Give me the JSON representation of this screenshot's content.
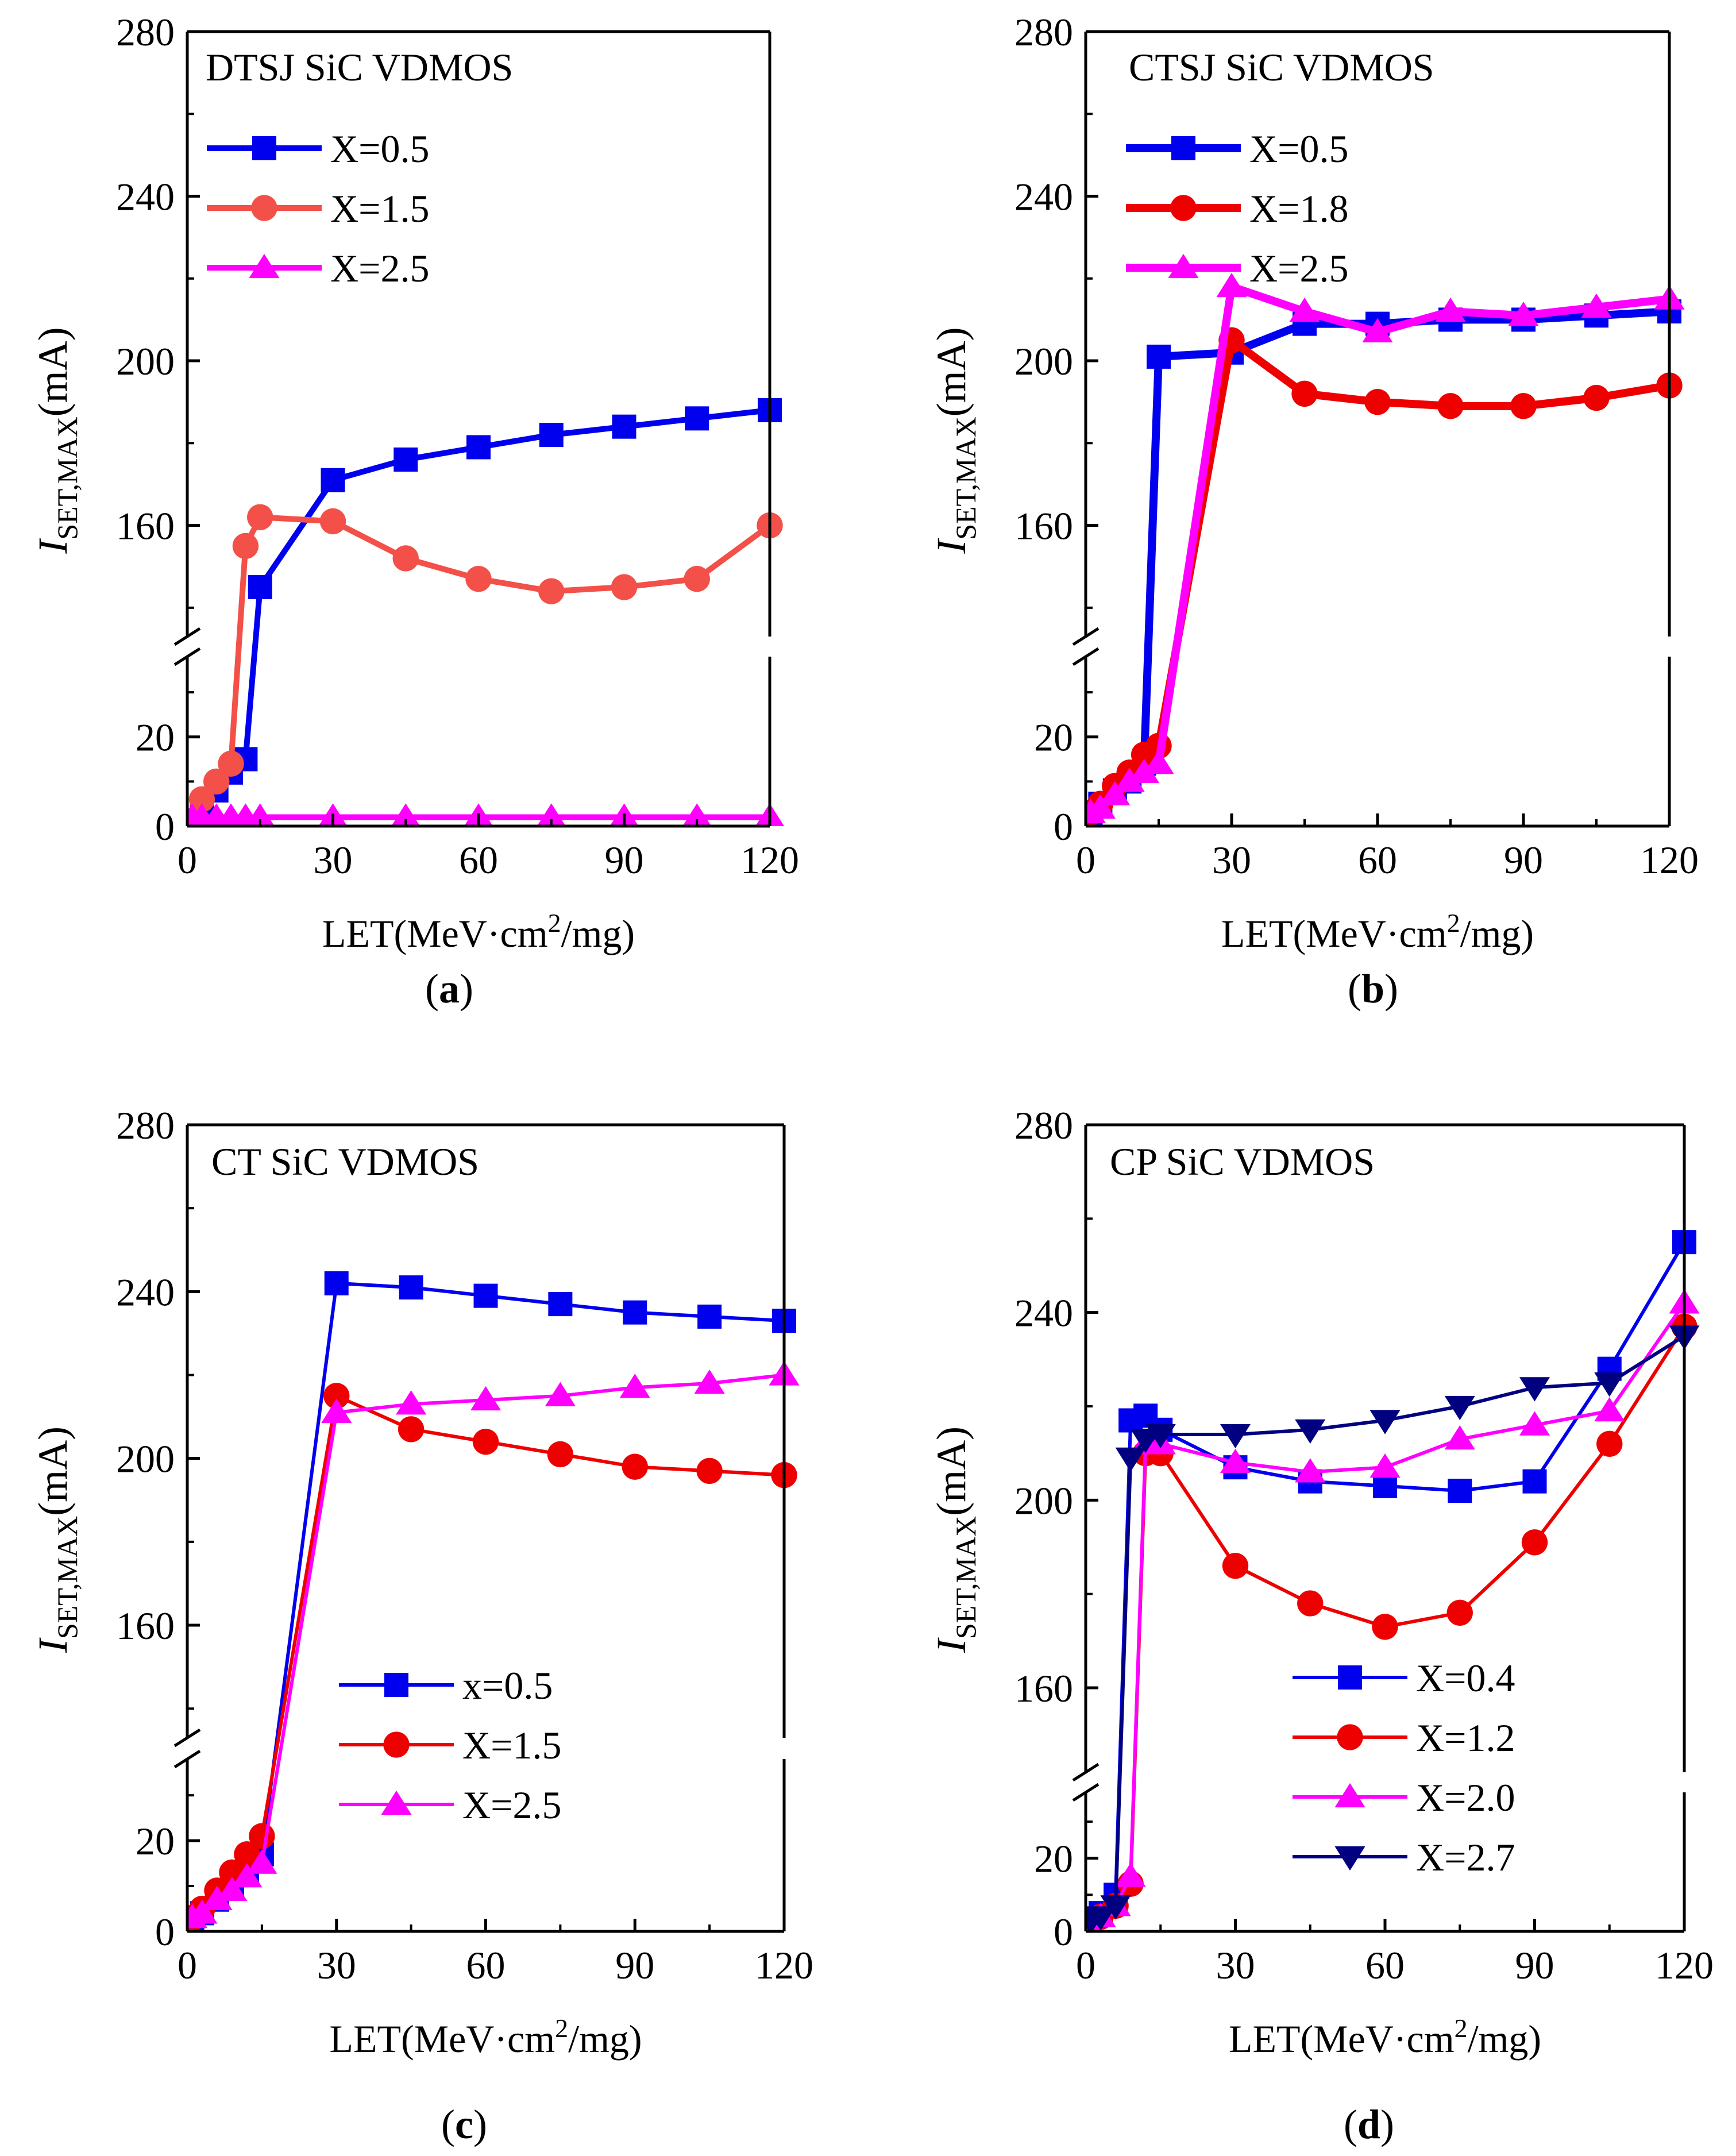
{
  "chart_data": [
    {
      "type": "line",
      "panel": "a",
      "caption": "a",
      "title": "DTSJ SiC VDMOS",
      "xlabel": "LET(MeV·cm²/mg)",
      "ylabel": "I_SET,MAX(mA)",
      "xlim": [
        0,
        120
      ],
      "xticks": [
        0,
        30,
        60,
        90,
        120
      ],
      "lower_ylim": [
        0,
        38
      ],
      "lower_yticks": [
        0,
        20
      ],
      "upper_ylim": [
        133,
        280
      ],
      "upper_yticks": [
        160,
        200,
        240,
        280
      ],
      "legend_position": "top-left",
      "series": [
        {
          "name": "X=0.5",
          "color": "#0000ee",
          "marker": "square",
          "width": 10,
          "x": [
            3,
            6,
            9,
            12,
            15,
            30,
            45,
            60,
            75,
            90,
            105,
            120
          ],
          "y": [
            3,
            8,
            12,
            15,
            145,
            171,
            176,
            179,
            182,
            184,
            186,
            188
          ]
        },
        {
          "name": "X=1.5",
          "color": "#f25048",
          "marker": "circle",
          "width": 10,
          "x": [
            3,
            6,
            9,
            12,
            15,
            30,
            45,
            60,
            75,
            90,
            105,
            120
          ],
          "y": [
            6,
            10,
            14,
            155,
            162,
            161,
            152,
            147,
            144,
            145,
            147,
            160
          ]
        },
        {
          "name": "X=2.5",
          "color": "#ff00ff",
          "marker": "triangle",
          "width": 10,
          "x": [
            1,
            3,
            6,
            9,
            12,
            15,
            30,
            45,
            60,
            75,
            90,
            105,
            120
          ],
          "y": [
            2,
            2,
            2,
            2,
            2,
            2,
            2,
            2,
            2,
            2,
            2,
            2,
            2
          ]
        }
      ]
    },
    {
      "type": "line",
      "panel": "b",
      "caption": "b",
      "title": "CTSJ  SiC VDMOS",
      "xlabel": "LET(MeV·cm²/mg)",
      "ylabel": "I_SET,MAX(mA)",
      "xlim": [
        0,
        120
      ],
      "xticks": [
        0,
        30,
        60,
        90,
        120
      ],
      "lower_ylim": [
        0,
        38
      ],
      "lower_yticks": [
        0,
        20
      ],
      "upper_ylim": [
        133,
        280
      ],
      "upper_yticks": [
        160,
        200,
        240,
        280
      ],
      "legend_position": "top-left",
      "series": [
        {
          "name": "X=0.5",
          "color": "#0000ee",
          "marker": "square",
          "width": 14,
          "x": [
            1,
            3,
            6,
            9,
            12,
            15,
            30,
            45,
            60,
            75,
            90,
            105,
            120
          ],
          "y": [
            3,
            5,
            8,
            10,
            14,
            201,
            202,
            209,
            209,
            210,
            210,
            211,
            212
          ]
        },
        {
          "name": "X=1.8",
          "color": "#ee0000",
          "marker": "circle",
          "width": 14,
          "x": [
            1,
            3,
            6,
            9,
            12,
            15,
            30,
            45,
            60,
            75,
            90,
            105,
            120
          ],
          "y": [
            3,
            5,
            9,
            12,
            16,
            18,
            205,
            192,
            190,
            189,
            189,
            191,
            194
          ]
        },
        {
          "name": "X=2.5",
          "color": "#ff00ff",
          "marker": "triangle",
          "width": 14,
          "x": [
            1,
            3,
            6,
            9,
            12,
            15,
            30,
            45,
            60,
            75,
            90,
            105,
            120
          ],
          "y": [
            3,
            4,
            7,
            10,
            12,
            14,
            218,
            212,
            207,
            212,
            211,
            213,
            215
          ]
        }
      ]
    },
    {
      "type": "line",
      "panel": "c",
      "caption": "c",
      "title": "CT SiC VDMOS",
      "xlabel": "LET(MeV·cm²/mg)",
      "ylabel": "I_SET,MAX(mA)",
      "xlim": [
        0,
        120
      ],
      "xticks": [
        0,
        30,
        60,
        90,
        120
      ],
      "lower_ylim": [
        0,
        38
      ],
      "lower_yticks": [
        0,
        20
      ],
      "upper_ylim": [
        133,
        280
      ],
      "upper_yticks": [
        160,
        200,
        240,
        280
      ],
      "legend_position": "bottom-right",
      "series": [
        {
          "name": "x=0.5",
          "color": "#0000ee",
          "marker": "square",
          "width": 6,
          "x": [
            1,
            3,
            6,
            9,
            12,
            15,
            30,
            45,
            60,
            75,
            90,
            105,
            120
          ],
          "y": [
            3,
            4,
            7,
            10,
            13,
            17,
            242,
            241,
            239,
            237,
            235,
            234,
            233
          ]
        },
        {
          "name": "X=1.5",
          "color": "#ee0000",
          "marker": "circle",
          "width": 6,
          "x": [
            1,
            3,
            6,
            9,
            12,
            15,
            30,
            45,
            60,
            75,
            90,
            105,
            120
          ],
          "y": [
            3,
            5,
            9,
            13,
            17,
            21,
            215,
            207,
            204,
            201,
            198,
            197,
            196
          ]
        },
        {
          "name": "X=2.5",
          "color": "#ff00ff",
          "marker": "triangle",
          "width": 6,
          "x": [
            1,
            3,
            6,
            9,
            12,
            15,
            30,
            45,
            60,
            75,
            90,
            105,
            120
          ],
          "y": [
            3,
            4,
            7,
            9,
            12,
            15,
            211,
            213,
            214,
            215,
            217,
            218,
            220
          ]
        }
      ]
    },
    {
      "type": "line",
      "panel": "d",
      "caption": "d",
      "title": "CP  SiC VDMOS",
      "xlabel": "LET(MeV·cm²/mg)",
      "ylabel": "I_SET,MAX(mA)",
      "xlim": [
        0,
        120
      ],
      "xticks": [
        0,
        30,
        60,
        90,
        120
      ],
      "lower_ylim": [
        0,
        38
      ],
      "lower_yticks": [
        0,
        20
      ],
      "upper_ylim": [
        142,
        280
      ],
      "upper_yticks": [
        160,
        200,
        240,
        280
      ],
      "legend_position": "bottom-right",
      "series": [
        {
          "name": "X=0.4",
          "color": "#0000ee",
          "marker": "square",
          "width": 6,
          "x": [
            1,
            3,
            6,
            9,
            12,
            15,
            30,
            45,
            60,
            75,
            90,
            105,
            120
          ],
          "y": [
            3,
            5,
            10,
            217,
            218,
            215,
            207,
            204,
            203,
            202,
            204,
            228,
            255
          ]
        },
        {
          "name": "X=1.2",
          "color": "#ee0000",
          "marker": "circle",
          "width": 6,
          "x": [
            1,
            3,
            6,
            9,
            12,
            15,
            30,
            45,
            60,
            75,
            90,
            105,
            120
          ],
          "y": [
            2,
            4,
            7,
            13,
            210,
            210,
            186,
            178,
            173,
            176,
            191,
            212,
            237
          ]
        },
        {
          "name": "X=2.0",
          "color": "#ff00ff",
          "marker": "triangle",
          "width": 6,
          "x": [
            1,
            3,
            6,
            9,
            12,
            15,
            30,
            45,
            60,
            75,
            90,
            105,
            120
          ],
          "y": [
            2,
            4,
            7,
            15,
            212,
            212,
            208,
            206,
            207,
            213,
            216,
            219,
            242
          ]
        },
        {
          "name": "X=2.7",
          "color": "#000080",
          "marker": "triangle-down",
          "width": 6,
          "x": [
            1,
            3,
            6,
            9,
            12,
            15,
            30,
            45,
            60,
            75,
            90,
            105,
            120
          ],
          "y": [
            3,
            4,
            7,
            209,
            213,
            214,
            214,
            215,
            217,
            220,
            224,
            225,
            235
          ]
        }
      ]
    }
  ]
}
